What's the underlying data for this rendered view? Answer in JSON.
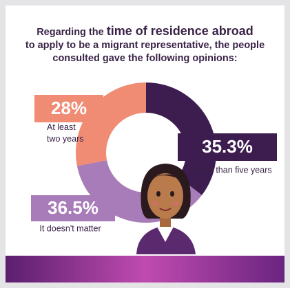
{
  "chart_data": {
    "type": "donut",
    "title_lead": "Regarding the",
    "title_emphasis": "time of residence abroad",
    "title_rest": "to apply to be a migrant representative, the people consulted gave the following opinions:",
    "categories": [
      "More than five years",
      "It doesn't matter",
      "At least two years"
    ],
    "values": [
      35.3,
      36.5,
      28
    ],
    "value_labels": [
      "35.3%",
      "36.5%",
      "28%"
    ],
    "colors": [
      "#3d1c4f",
      "#a87cb8",
      "#f08b74"
    ]
  }
}
